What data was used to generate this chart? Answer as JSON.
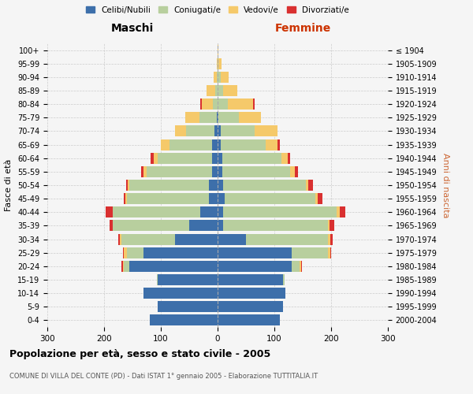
{
  "age_groups": [
    "0-4",
    "5-9",
    "10-14",
    "15-19",
    "20-24",
    "25-29",
    "30-34",
    "35-39",
    "40-44",
    "45-49",
    "50-54",
    "55-59",
    "60-64",
    "65-69",
    "70-74",
    "75-79",
    "80-84",
    "85-89",
    "90-94",
    "95-99",
    "100+"
  ],
  "birth_years": [
    "2000-2004",
    "1995-1999",
    "1990-1994",
    "1985-1989",
    "1980-1984",
    "1975-1979",
    "1970-1974",
    "1965-1969",
    "1960-1964",
    "1955-1959",
    "1950-1954",
    "1945-1949",
    "1940-1944",
    "1935-1939",
    "1930-1934",
    "1925-1929",
    "1920-1924",
    "1915-1919",
    "1910-1914",
    "1905-1909",
    "≤ 1904"
  ],
  "males": {
    "celibi": [
      120,
      105,
      130,
      105,
      155,
      130,
      75,
      50,
      30,
      15,
      15,
      10,
      10,
      10,
      5,
      2,
      0,
      0,
      0,
      0,
      0
    ],
    "coniugati": [
      0,
      0,
      0,
      2,
      10,
      30,
      95,
      135,
      155,
      145,
      140,
      115,
      95,
      75,
      50,
      30,
      8,
      4,
      2,
      0,
      0
    ],
    "vedovi": [
      0,
      0,
      0,
      0,
      2,
      5,
      2,
      0,
      0,
      2,
      3,
      5,
      8,
      15,
      20,
      25,
      20,
      15,
      5,
      2,
      0
    ],
    "divorziati": [
      0,
      0,
      0,
      0,
      2,
      2,
      3,
      5,
      12,
      3,
      3,
      5,
      5,
      0,
      0,
      0,
      2,
      0,
      0,
      0,
      0
    ]
  },
  "females": {
    "nubili": [
      110,
      115,
      120,
      115,
      130,
      130,
      50,
      10,
      10,
      12,
      10,
      8,
      8,
      5,
      5,
      2,
      0,
      0,
      0,
      0,
      0
    ],
    "coniugate": [
      0,
      0,
      0,
      3,
      15,
      65,
      145,
      185,
      200,
      160,
      145,
      120,
      105,
      80,
      60,
      35,
      18,
      10,
      5,
      2,
      0
    ],
    "vedove": [
      0,
      0,
      0,
      0,
      2,
      3,
      3,
      2,
      5,
      5,
      5,
      8,
      10,
      20,
      40,
      40,
      45,
      25,
      15,
      5,
      2
    ],
    "divorziate": [
      0,
      0,
      0,
      0,
      2,
      2,
      5,
      8,
      10,
      8,
      8,
      5,
      5,
      5,
      0,
      0,
      2,
      0,
      0,
      0,
      0
    ]
  },
  "colors": {
    "celibi": "#3d6faa",
    "coniugati": "#b8cf9e",
    "vedovi": "#f5c96a",
    "divorziati": "#d93030"
  },
  "xlim": 300,
  "title": "Popolazione per età, sesso e stato civile - 2005",
  "subtitle": "COMUNE DI VILLA DEL CONTE (PD) - Dati ISTAT 1° gennaio 2005 - Elaborazione TUTTITALIA.IT",
  "ylabel_left": "Fasce di età",
  "ylabel_right": "Anni di nascita",
  "xlabel_left": "Maschi",
  "xlabel_right": "Femmine",
  "legend_labels": [
    "Celibi/Nubili",
    "Coniugati/e",
    "Vedovi/e",
    "Divorziati/e"
  ],
  "bg_color": "#f5f5f5",
  "grid_color": "#cccccc",
  "femmine_color": "#cc3300",
  "maschi_color": "#000000"
}
